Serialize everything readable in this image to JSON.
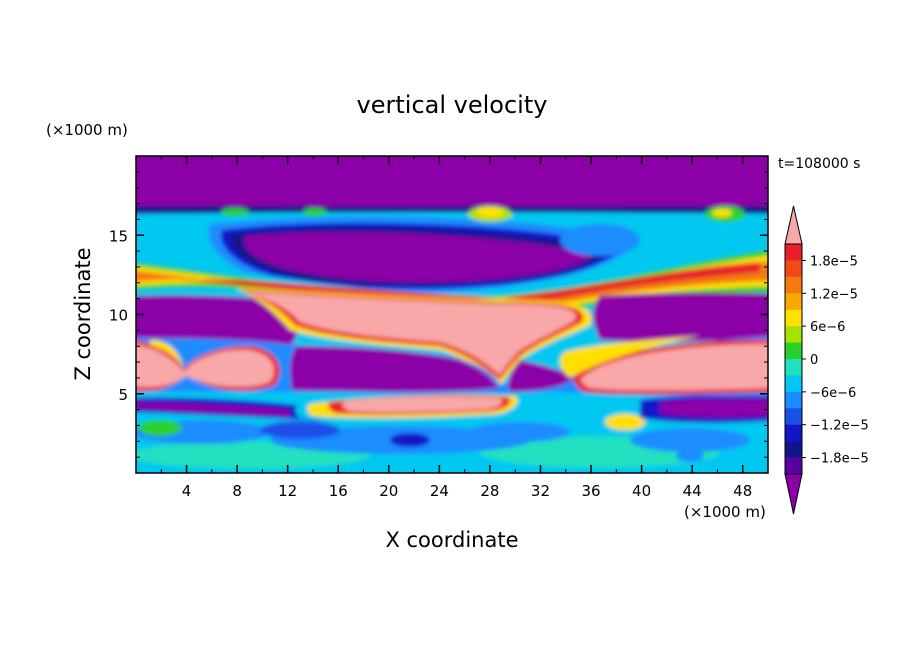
{
  "chart_data": {
    "type": "heatmap",
    "title": "vertical velocity",
    "xlabel": "X coordinate",
    "ylabel": "Z coordinate",
    "x_unit": "(×1000 m)",
    "y_unit": "(×1000 m)",
    "time_label": "t=108000 s",
    "xlim": [
      0,
      50
    ],
    "ylim": [
      0,
      20
    ],
    "x_ticks": [
      "4",
      "8",
      "12",
      "16",
      "20",
      "24",
      "28",
      "32",
      "36",
      "40",
      "44",
      "48"
    ],
    "y_ticks": [
      "5",
      "10",
      "15"
    ],
    "x_tick_values": [
      4,
      8,
      12,
      16,
      20,
      24,
      28,
      32,
      36,
      40,
      44,
      48
    ],
    "y_tick_values": [
      5,
      10,
      15
    ],
    "colorbar": {
      "labels": [
        "1.8e−5",
        "1.2e−5",
        "6e−6",
        "0",
        "−6e−6",
        "−1.2e−5",
        "−1.8e−5"
      ],
      "label_values": [
        1.8e-05,
        1.2e-05,
        6e-06,
        0,
        -6e-06,
        -1.2e-05,
        -1.8e-05
      ],
      "levels_top_to_bottom": [
        2.1e-05,
        1.8e-05,
        1.5e-05,
        1.2e-05,
        9e-06,
        6e-06,
        3e-06,
        0,
        -3e-06,
        -6e-06,
        -9e-06,
        -1.2e-05,
        -1.5e-05,
        -1.8e-05,
        -2.1e-05
      ],
      "colors_top_to_bottom": [
        "#f8a8a8",
        "#e8202a",
        "#f04a18",
        "#f47a10",
        "#f8a800",
        "#ffe000",
        "#a8e000",
        "#2ad02a",
        "#20e0c0",
        "#00c8f0",
        "#1a8cff",
        "#1a50e8",
        "#1414c8",
        "#14148a",
        "#5a00a0",
        "#8c00a8"
      ],
      "extend": "both"
    },
    "field": [
      {
        "level": -2.1e-05,
        "shape": "ellipse",
        "x": 19,
        "z": 5,
        "rx": 2.5,
        "rz": 0.5
      },
      {
        "level": 2.1e-05,
        "shape": "ellipse",
        "x": 22,
        "z": 10,
        "rx": 5,
        "rz": 2
      },
      {
        "level": 2.1e-05,
        "shape": "ellipse",
        "x": 4,
        "z": 7,
        "rx": 2,
        "rz": 1
      },
      {
        "level": 2.1e-05,
        "shape": "ellipse",
        "x": 8,
        "z": 7,
        "rx": 2,
        "rz": 1
      },
      {
        "level": 2.1e-05,
        "shape": "ellipse",
        "x": 41,
        "z": 7,
        "rx": 5,
        "rz": 1
      },
      {
        "level": -2.1e-05,
        "shape": "ellipse",
        "x": 15,
        "z": 5,
        "rx": 3,
        "rz": 1
      },
      {
        "level": -2.1e-05,
        "shape": "ellipse",
        "x": 25,
        "z": 7,
        "rx": 3,
        "rz": 2
      },
      {
        "level": -2.1e-05,
        "shape": "ellipse",
        "x": 35,
        "z": 11,
        "rx": 3,
        "rz": 1
      },
      {
        "level": 0,
        "shape": "ellipse",
        "x": 4,
        "z": 3,
        "rx": 1,
        "rz": 0.5
      },
      {
        "level": 0,
        "shape": "ellipse",
        "x": 36,
        "z": 3,
        "rx": 1,
        "rz": 0.5
      },
      {
        "level": 0,
        "shape": "ellipse",
        "x": 44,
        "z": 17,
        "rx": 1,
        "rz": 0.5
      }
    ]
  }
}
